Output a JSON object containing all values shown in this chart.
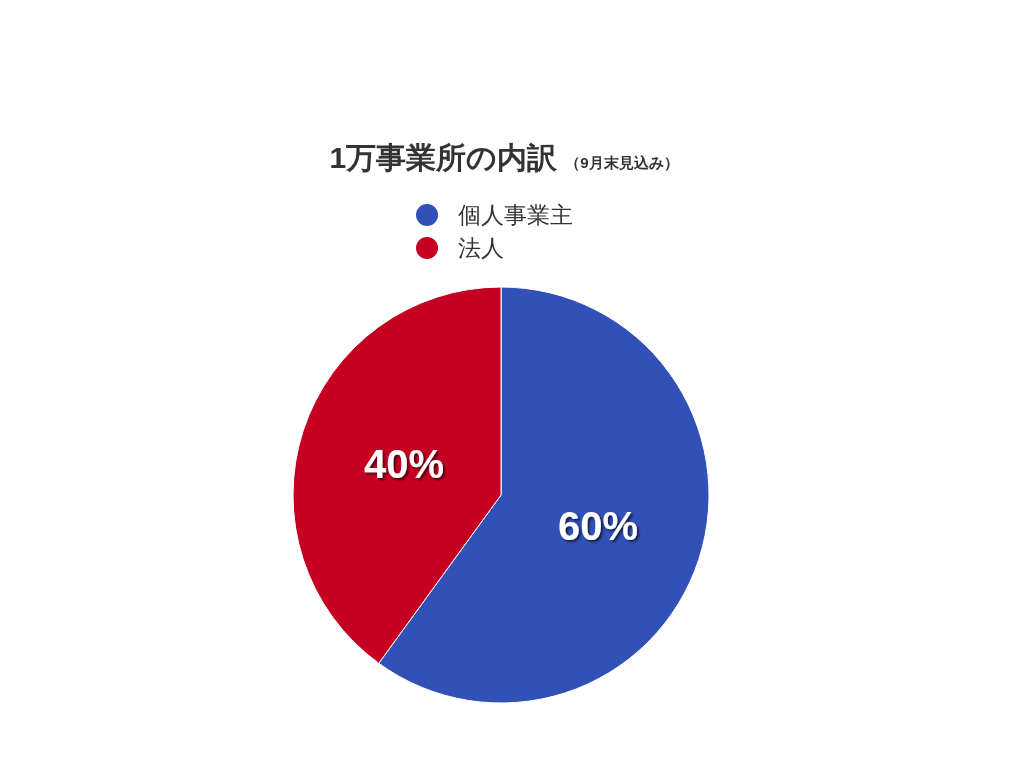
{
  "chart_data": {
    "type": "pie",
    "title": "1万事業所の内訳",
    "subtitle": "（9月末見込み）",
    "categories": [
      "個人事業主",
      "法人"
    ],
    "values": [
      60,
      40
    ],
    "colors": [
      "#3150b8",
      "#c50022"
    ],
    "value_labels": [
      "60%",
      "40%"
    ],
    "legend": "top"
  }
}
